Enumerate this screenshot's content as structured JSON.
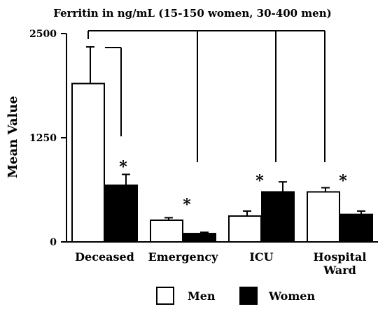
{
  "chart_data": {
    "type": "bar",
    "title": "Ferritin in ng/mL (15-150 women, 30-400 men)",
    "xlabel": "",
    "ylabel": "Mean Value",
    "ylim": [
      0,
      2500
    ],
    "yticks": [
      "0",
      "1250",
      "2500"
    ],
    "categories": [
      [
        "Deceased"
      ],
      [
        "Emergency"
      ],
      [
        "ICU"
      ],
      [
        "Hospital",
        "Ward"
      ]
    ],
    "series": [
      {
        "name": "Men",
        "color": "#ffffff",
        "values": [
          1900,
          260,
          310,
          600
        ],
        "errors": [
          440,
          30,
          60,
          50
        ]
      },
      {
        "name": "Women",
        "color": "#000000",
        "values": [
          680,
          100,
          600,
          330
        ],
        "errors": [
          130,
          15,
          120,
          40
        ]
      }
    ],
    "significance": [
      "*",
      "*",
      "*",
      "*"
    ],
    "legend": {
      "position": "bottom",
      "items": [
        "Men",
        "Women"
      ]
    },
    "grid": false
  }
}
